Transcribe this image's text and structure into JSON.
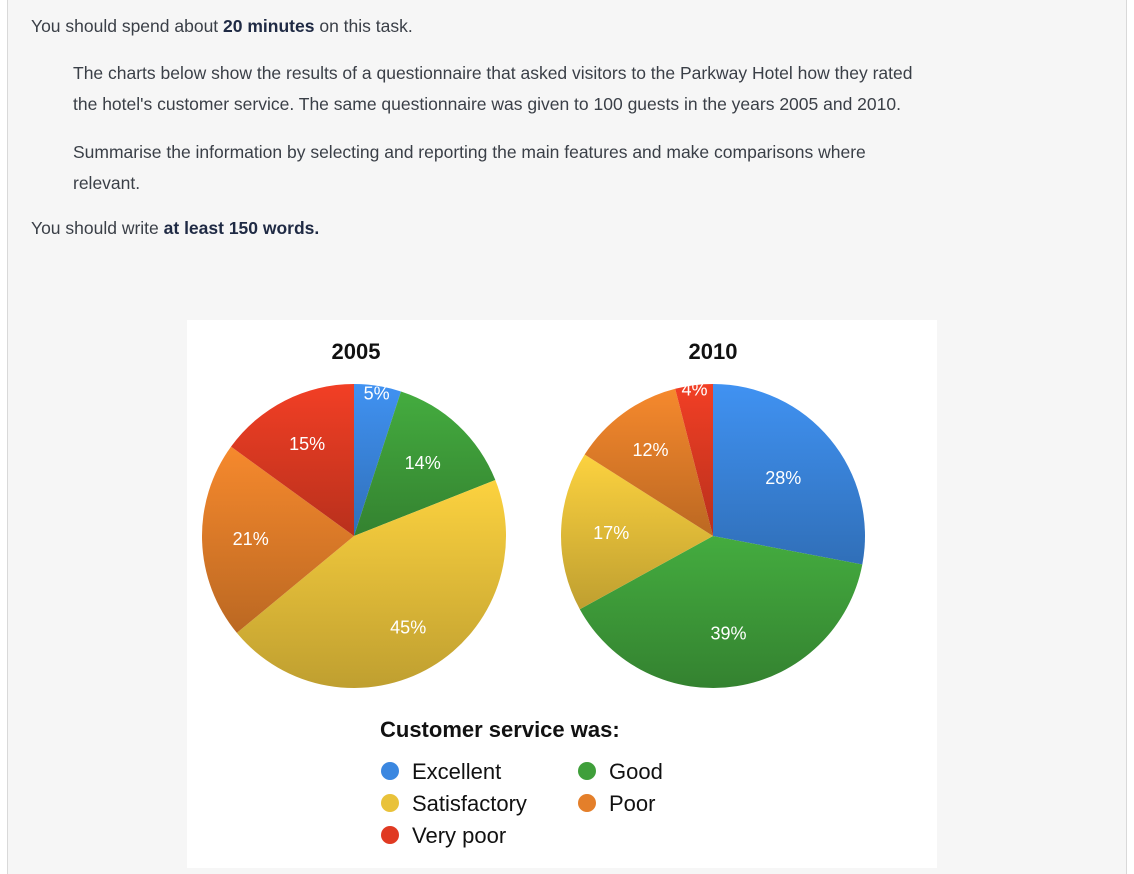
{
  "instructions": {
    "line1_before": "You should spend about ",
    "line1_bold": "20 minutes",
    "line1_after": " on this task.",
    "para1_line1": "The charts below show the results of a questionnaire that asked visitors to the Parkway Hotel how they rated",
    "para1_line2": "the hotel's customer service. The same questionnaire was given to 100 guests in the years 2005 and 2010.",
    "para2_line1": "Summarise the information by selecting and reporting the main features and make comparisons where",
    "para2_line2": "relevant.",
    "line_last_before": "You should write ",
    "line_last_bold": "at least 150 words."
  },
  "chart_data": {
    "type": "pie",
    "legend_title": "Customer service was:",
    "categories": [
      {
        "name": "Excellent",
        "color": "#3b87e0"
      },
      {
        "name": "Good",
        "color": "#3f9f3a"
      },
      {
        "name": "Satisfactory",
        "color": "#e9c23a"
      },
      {
        "name": "Poor",
        "color": "#e47f2a"
      },
      {
        "name": "Very poor",
        "color": "#e03a22"
      }
    ],
    "charts": [
      {
        "title": "2005",
        "values": [
          5,
          14,
          45,
          21,
          15
        ],
        "labels": [
          "5%",
          "14%",
          "45%",
          "21%",
          "15%"
        ]
      },
      {
        "title": "2010",
        "values": [
          28,
          39,
          17,
          12,
          4
        ],
        "labels": [
          "28%",
          "39%",
          "17%",
          "12%",
          "4%"
        ]
      }
    ]
  }
}
